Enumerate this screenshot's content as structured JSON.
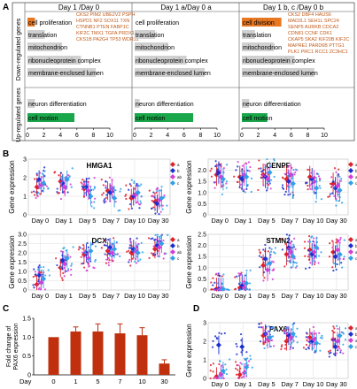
{
  "panel_letters": {
    "a": "A",
    "b": "B",
    "c": "C",
    "d": "D"
  },
  "panel_a": {
    "row_labels": {
      "down": "Down-regulated genes",
      "up": "Up-regulated genes"
    },
    "columns": [
      {
        "header": "Day 1 /Day 0",
        "bars": [
          {
            "label": "cell proliferation",
            "value": 0.9,
            "color": "#e87722"
          },
          {
            "label": "translation",
            "value": 2.1,
            "color": "#d0d0d0"
          },
          {
            "label": "mitochondrion",
            "value": 4.2,
            "color": "#d0d0d0"
          },
          {
            "label": "ribonucleoprotein complex",
            "value": 6.5,
            "color": "#d0d0d0"
          },
          {
            "label": "membrane-enclosed lumen",
            "value": 8.3,
            "color": "#d0d0d0"
          }
        ],
        "up_bars": [
          {
            "label": "neuron differentiation",
            "value": 0.9,
            "color": "#d0d0d0"
          },
          {
            "label": "cell motion",
            "value": 5.7,
            "color": "#1aa64a"
          }
        ],
        "genes": [
          "CKS2 PIM2 UBE2V2 PSPH",
          "HSPD1 NF2 SOX11 TXN",
          "CTNNB1 PTEN FABP1C",
          "KIF2C TMX1 TGFA PRDX1",
          "CKS1B PA2G4 TP53 WDR12"
        ]
      },
      {
        "header": "Day 1 a/Day 0 a",
        "bars": [
          {
            "label": "cell proliferation",
            "value": 0.0,
            "color": "#e87722"
          },
          {
            "label": "translation",
            "value": 2.5,
            "color": "#d0d0d0"
          },
          {
            "label": "mitochondrion",
            "value": 4.1,
            "color": "#d0d0d0"
          },
          {
            "label": "ribonucleoprotein complex",
            "value": 6.3,
            "color": "#d0d0d0"
          },
          {
            "label": "membrane-enclosed lumen",
            "value": 8.5,
            "color": "#d0d0d0"
          }
        ],
        "up_bars": [
          {
            "label": "neuron differentiation",
            "value": 0.6,
            "color": "#d0d0d0"
          },
          {
            "label": "cell motion",
            "value": 7.1,
            "color": "#1aa64a"
          }
        ],
        "genes": []
      },
      {
        "header": "Day 1 b, c /Day 0 b",
        "bars": [
          {
            "label": "cell division",
            "value": 4.8,
            "color": "#e87722"
          },
          {
            "label": "translation",
            "value": 1.6,
            "color": "#d0d0d0"
          },
          {
            "label": "mitochondrion",
            "value": 3.9,
            "color": "#d0d0d0"
          },
          {
            "label": "ribonucleoprotein complex",
            "value": 6.4,
            "color": "#d0d0d0"
          },
          {
            "label": "membrane-enclosed lumen",
            "value": 8.8,
            "color": "#d0d0d0"
          }
        ],
        "up_bars": [
          {
            "label": "neuron differentiation",
            "value": 0.9,
            "color": "#d0d0d0"
          },
          {
            "label": "cell motion",
            "value": 3.1,
            "color": "#1aa64a"
          }
        ],
        "genes": [
          "CKS2 DBF4 HAUS6",
          "MAD2L1 SEH1L SPC24",
          "SENP5 AURKB CDCA2",
          "CDN81 CCNF CDK1",
          "CKAP5 SKA2 KIF20B KIF2C",
          "MAPRE1 PARD6B PTTG1",
          "PLK1 PRC1 RCC1 ZC3HC1"
        ]
      }
    ],
    "x_ticks": [
      "0",
      "2",
      "4",
      "6",
      "8",
      "10"
    ]
  },
  "chart_data": [
    {
      "type": "scatter",
      "title": "HMGA1",
      "ylabel": "Gene expression",
      "categories": [
        "Day 0",
        "Day 1",
        "Day 5",
        "Day 7",
        "Day 10",
        "Day 30"
      ],
      "ylim": [
        0,
        3
      ],
      "y_ticks": [
        "0",
        "1",
        "2",
        "3"
      ],
      "legend": [
        "a",
        "b",
        "ab",
        "c"
      ],
      "series": [
        {
          "name": "a",
          "means": [
            1.5,
            1.8,
            1.4,
            1.3,
            0.9,
            0.7
          ]
        },
        {
          "name": "b",
          "means": [
            1.9,
            1.7,
            1.5,
            1.2,
            1.0,
            0.6
          ]
        },
        {
          "name": "ab",
          "means": [
            1.6,
            1.5,
            1.3,
            1.4,
            1.1,
            0.8
          ]
        },
        {
          "name": "c",
          "means": [
            1.7,
            1.9,
            1.0,
            0.9,
            1.2,
            0.9
          ]
        }
      ]
    },
    {
      "type": "scatter",
      "title": "CENPF",
      "ylabel": "Gene expression",
      "categories": [
        "Day 0",
        "Day 1",
        "Day 5",
        "Day 7",
        "Day 10",
        "Day 30"
      ],
      "ylim": [
        0,
        2.5
      ],
      "y_ticks": [
        "0",
        "0.5",
        "1.0",
        "1.5",
        "2.0"
      ],
      "legend": [
        "a",
        "b",
        "ab",
        "c"
      ],
      "series": [
        {
          "name": "a",
          "means": [
            1.8,
            1.7,
            1.8,
            1.6,
            1.7,
            1.4
          ]
        },
        {
          "name": "b",
          "means": [
            1.9,
            1.6,
            1.7,
            1.5,
            1.6,
            1.2
          ]
        },
        {
          "name": "ab",
          "means": [
            1.7,
            1.8,
            1.6,
            1.8,
            1.5,
            1.3
          ]
        },
        {
          "name": "c",
          "means": [
            1.6,
            1.7,
            1.9,
            1.4,
            1.2,
            1.1
          ]
        }
      ]
    },
    {
      "type": "scatter",
      "title": "DCX",
      "ylabel": "Gene expression",
      "categories": [
        "Day 0",
        "Day 1",
        "Day 5",
        "Day 7",
        "Day 10",
        "Day 30"
      ],
      "ylim": [
        0,
        3
      ],
      "y_ticks": [
        "0",
        "0.5",
        "1.0",
        "1.5",
        "2.0",
        "2.5",
        "3.0"
      ],
      "legend": [
        "a",
        "b",
        "ab",
        "c"
      ],
      "series": [
        {
          "name": "a",
          "means": [
            0.3,
            1.2,
            1.9,
            2.1,
            2.0,
            2.2
          ]
        },
        {
          "name": "b",
          "means": [
            0.8,
            1.6,
            2.0,
            2.3,
            2.2,
            2.4
          ]
        },
        {
          "name": "ab",
          "means": [
            0.4,
            1.4,
            1.7,
            2.0,
            2.1,
            2.3
          ]
        },
        {
          "name": "c",
          "means": [
            0.6,
            1.7,
            2.1,
            2.2,
            2.0,
            2.5
          ]
        }
      ]
    },
    {
      "type": "scatter",
      "title": "STMN2",
      "ylabel": "Gene expression",
      "categories": [
        "Day 0",
        "Day 1",
        "Day 5",
        "Day 7",
        "Day 10",
        "Day 30"
      ],
      "ylim": [
        0,
        2.5
      ],
      "y_ticks": [
        "0",
        "0.5",
        "1.0",
        "1.5",
        "2.0",
        "2.5"
      ],
      "legend": [
        "a",
        "b",
        "ab",
        "c"
      ],
      "series": [
        {
          "name": "a",
          "means": [
            0.05,
            0.1,
            1.1,
            1.6,
            1.8,
            1.7
          ]
        },
        {
          "name": "b",
          "means": [
            0.05,
            0.2,
            1.4,
            1.9,
            1.6,
            1.5
          ]
        },
        {
          "name": "ab",
          "means": [
            0.05,
            0.1,
            0.9,
            1.7,
            1.7,
            1.8
          ]
        },
        {
          "name": "c",
          "means": [
            0.05,
            0.3,
            1.2,
            1.5,
            1.9,
            1.6
          ]
        }
      ]
    },
    {
      "type": "bar",
      "ylabel": "Fold change of PAX6 expression",
      "xlabel": "Day",
      "categories": [
        "0",
        "1",
        "5",
        "7",
        "10",
        "30"
      ],
      "values": [
        1.0,
        1.15,
        1.15,
        1.1,
        1.05,
        0.3
      ],
      "errors": [
        0.0,
        0.12,
        0.2,
        0.25,
        0.2,
        0.1
      ],
      "ylim": [
        0,
        1.5
      ],
      "y_ticks": [
        "0",
        "0.5",
        "1.0",
        "1.5"
      ],
      "color": "#c0300f"
    },
    {
      "type": "scatter",
      "title": "PAX6",
      "ylabel": "Gene expression",
      "categories": [
        "Day 0",
        "Day 1",
        "Day 5",
        "Day 7",
        "Day 10",
        "Day 30"
      ],
      "ylim": [
        0,
        3
      ],
      "y_ticks": [
        "0",
        "1",
        "2",
        "3"
      ],
      "legend": [
        "a",
        "b",
        "ab",
        "c"
      ],
      "series": [
        {
          "name": "a",
          "means": [
            0.1,
            0.2,
            2.3,
            2.0,
            2.2,
            2.1
          ]
        },
        {
          "name": "b",
          "means": [
            1.8,
            1.7,
            2.4,
            2.3,
            2.0,
            1.7
          ]
        },
        {
          "name": "ab",
          "means": [
            0.2,
            0.3,
            2.1,
            2.2,
            2.1,
            2.0
          ]
        },
        {
          "name": "c",
          "means": [
            0.4,
            0.6,
            2.2,
            2.4,
            1.9,
            2.3
          ]
        }
      ]
    }
  ],
  "colors": {
    "a": "#e0202a",
    "b": "#1a2fd0",
    "ab": "#d63cd6",
    "c": "#2fa0e8",
    "grid": "#dddddd",
    "axis": "#000000",
    "gene_text": "#c25a1a"
  }
}
